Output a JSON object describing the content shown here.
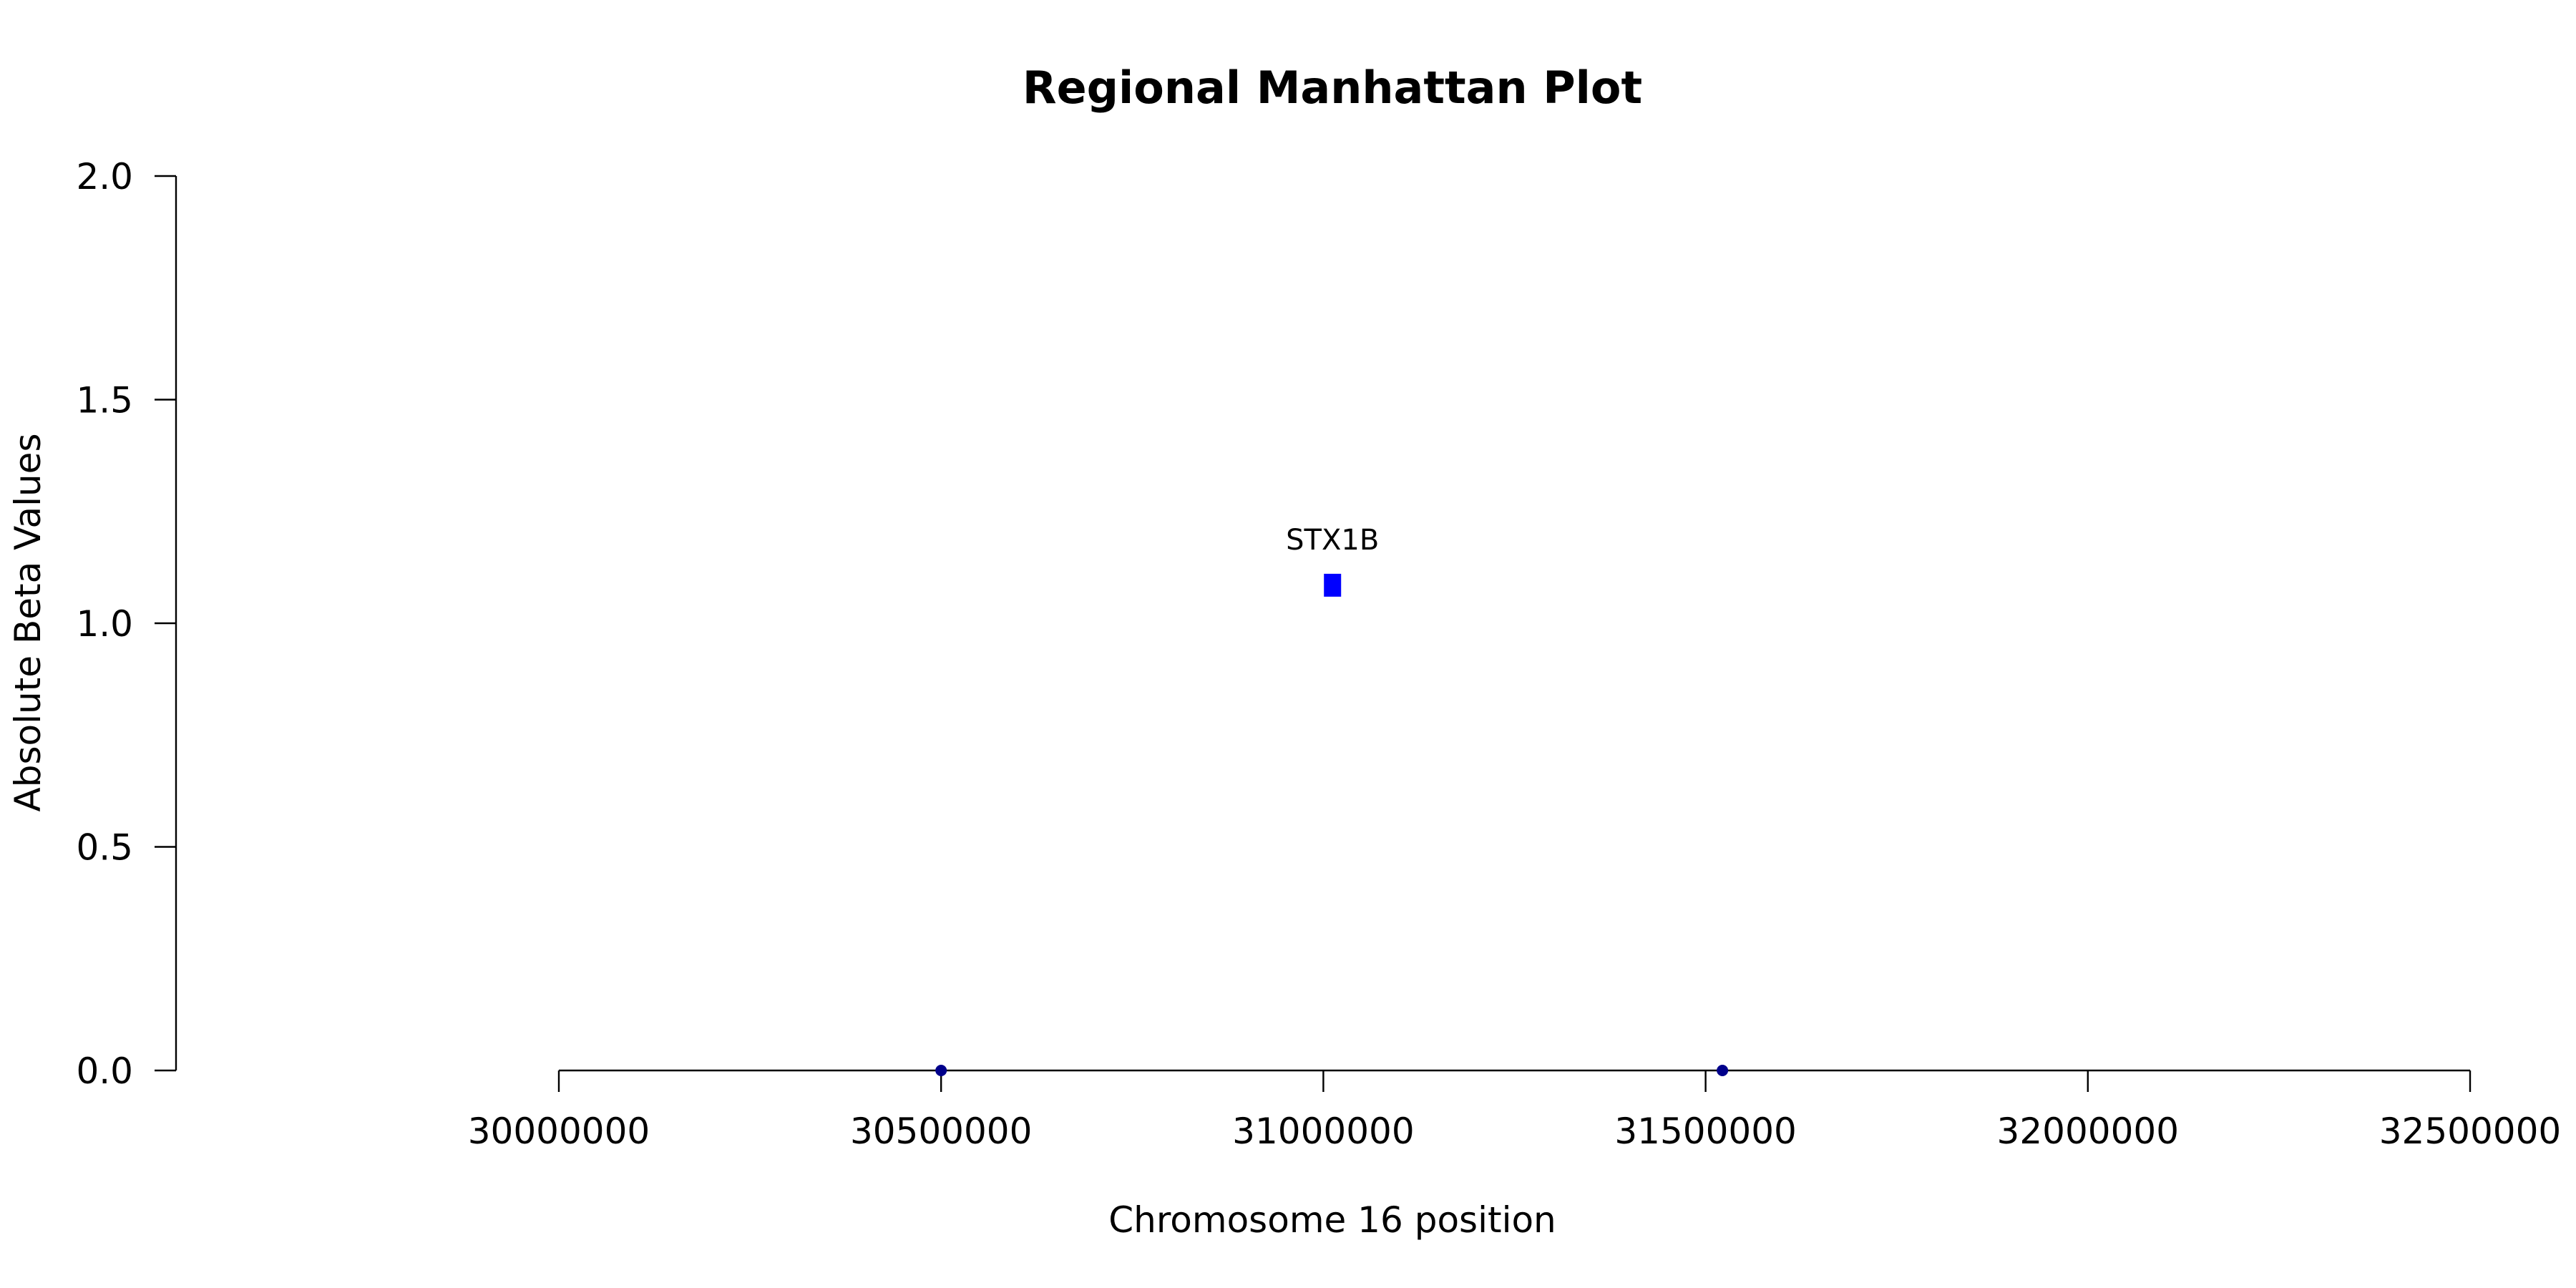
{
  "chart_data": {
    "type": "scatter",
    "title": "Regional Manhattan Plot",
    "xlabel": "Chromosome 16 position",
    "ylabel": "Absolute Beta Values",
    "xlim": [
      30000000,
      32500000
    ],
    "ylim": [
      0,
      2
    ],
    "xticks": [
      30000000,
      30500000,
      31000000,
      31500000,
      32000000,
      32500000
    ],
    "xtick_labels": [
      "30000000",
      "30500000",
      "31000000",
      "31500000",
      "32000000",
      "32500000"
    ],
    "yticks": [
      0,
      0.5,
      1,
      1.5,
      2
    ],
    "ytick_labels": [
      "0.0",
      "0.5",
      "1.0",
      "1.5",
      "2.0"
    ],
    "grid": false,
    "points": [
      {
        "x": 30500000,
        "y": 0.0,
        "color": "#00008b",
        "shape": "circle",
        "label": ""
      },
      {
        "x": 31012000,
        "y": 1.085,
        "color": "#0000ff",
        "shape": "square",
        "label": "STX1B"
      },
      {
        "x": 31522000,
        "y": 0.0,
        "color": "#00008b",
        "shape": "circle",
        "label": ""
      }
    ]
  }
}
